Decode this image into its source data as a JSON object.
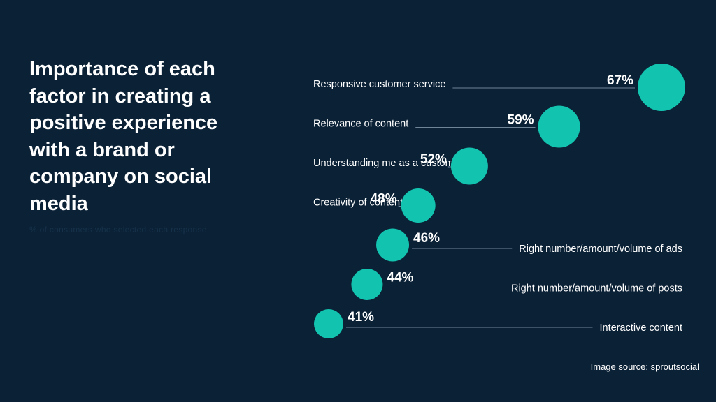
{
  "title": "Importance of each factor in creating a positive experience with a brand or company on social media",
  "subtitle": "% of consumers who selected each response",
  "source": "Image source: sproutsocial",
  "colors": {
    "background": "#0b2136",
    "bubble": "#12c4b0",
    "line": "#6f8496",
    "text": "#ffffff"
  },
  "chart_data": {
    "type": "scatter",
    "title": "Importance of each factor in creating a positive experience with a brand or company on social media",
    "categories": [
      "Responsive customer service",
      "Relevance of content",
      "Understanding me as a customer",
      "Creativity of content",
      "Right number/amount/volume of ads",
      "Right number/amount/volume of posts",
      "Interactive content"
    ],
    "values": [
      67,
      59,
      52,
      48,
      46,
      44,
      41
    ],
    "value_labels": [
      "67%",
      "59%",
      "52%",
      "48%",
      "46%",
      "44%",
      "41%"
    ],
    "unit": "%"
  }
}
